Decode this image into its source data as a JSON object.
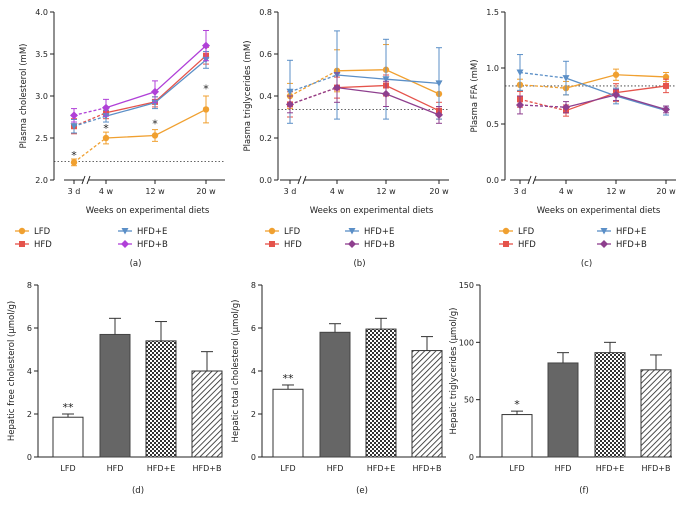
{
  "colors": {
    "LFD": "#f0a030",
    "HFD": "#e5534b",
    "HFD+E": "#5b8fc7",
    "HFD+B": "#b040d8",
    "B_dark": "#8e3f8e",
    "bar_dark": "#666666"
  },
  "chart_data": [
    {
      "panel": "(a)",
      "type": "line",
      "xlabel": "Weeks on experimental diets",
      "ylabel": "Plasma cholesterol (mM)",
      "categories": [
        "3 d",
        "4 w",
        "12 w",
        "20 w"
      ],
      "ylim": [
        2.0,
        4.0
      ],
      "yticks": [
        "2.0",
        "2.5",
        "3.0",
        "3.5",
        "4.0"
      ],
      "baseline": 2.22,
      "series": [
        {
          "name": "LFD",
          "values": [
            2.21,
            2.5,
            2.53,
            2.84
          ],
          "err": [
            0.04,
            0.07,
            0.07,
            0.16
          ]
        },
        {
          "name": "HFD",
          "values": [
            2.64,
            2.8,
            2.93,
            3.48
          ],
          "err": [
            0.09,
            0.07,
            0.06,
            0.1
          ]
        },
        {
          "name": "HFD+E",
          "values": [
            2.64,
            2.76,
            2.92,
            3.43
          ],
          "err": [
            0.08,
            0.07,
            0.07,
            0.1
          ]
        },
        {
          "name": "HFD+B",
          "values": [
            2.77,
            2.86,
            3.05,
            3.6
          ],
          "err": [
            0.08,
            0.1,
            0.13,
            0.18
          ]
        }
      ],
      "annotations": [
        {
          "text": "*",
          "cat": 0,
          "y": 2.3
        },
        {
          "text": "*",
          "cat": 1,
          "y": 2.62
        },
        {
          "text": "*",
          "cat": 2,
          "y": 2.67
        },
        {
          "text": "*",
          "cat": 3,
          "y": 3.09
        }
      ]
    },
    {
      "panel": "(b)",
      "type": "line",
      "xlabel": "Weeks on experimental diets",
      "ylabel": "Plasma triglycerides (mM)",
      "categories": [
        "3 d",
        "4 w",
        "12 w",
        "20 w"
      ],
      "ylim": [
        0.0,
        0.8
      ],
      "yticks": [
        "0.0",
        "0.2",
        "0.4",
        "0.6",
        "0.8"
      ],
      "baseline": 0.335,
      "series": [
        {
          "name": "LFD",
          "values": [
            0.4,
            0.52,
            0.525,
            0.41
          ],
          "err": [
            0.06,
            0.1,
            0.12,
            0.06
          ]
        },
        {
          "name": "HFD",
          "values": [
            0.36,
            0.44,
            0.45,
            0.33
          ],
          "err": [
            0.06,
            0.05,
            0.05,
            0.04
          ]
        },
        {
          "name": "HFD+E",
          "values": [
            0.42,
            0.5,
            0.48,
            0.46
          ],
          "err": [
            0.15,
            0.21,
            0.19,
            0.17
          ]
        },
        {
          "name": "HFD+B",
          "values": [
            0.36,
            0.44,
            0.41,
            0.31
          ],
          "err": [
            0.04,
            0.07,
            0.06,
            0.04
          ]
        }
      ]
    },
    {
      "panel": "(c)",
      "type": "line",
      "xlabel": "Weeks on experimental diets",
      "ylabel": "Plasma FFA (mM)",
      "categories": [
        "3 d",
        "4 w",
        "12 w",
        "20 w"
      ],
      "ylim": [
        0.0,
        1.5
      ],
      "yticks": [
        "0.0",
        "0.5",
        "1.0",
        "1.5"
      ],
      "baseline": 0.84,
      "series": [
        {
          "name": "LFD",
          "values": [
            0.85,
            0.82,
            0.94,
            0.92
          ],
          "err": [
            0.05,
            0.06,
            0.05,
            0.04
          ]
        },
        {
          "name": "HFD",
          "values": [
            0.72,
            0.62,
            0.78,
            0.84
          ],
          "err": [
            0.07,
            0.05,
            0.08,
            0.06
          ]
        },
        {
          "name": "HFD+E",
          "values": [
            0.96,
            0.91,
            0.75,
            0.62
          ],
          "err": [
            0.16,
            0.15,
            0.07,
            0.04
          ]
        },
        {
          "name": "HFD+B",
          "values": [
            0.67,
            0.65,
            0.76,
            0.63
          ],
          "err": [
            0.08,
            0.05,
            0.05,
            0.03
          ]
        }
      ]
    },
    {
      "panel": "(d)",
      "type": "bar",
      "ylabel": "Hepatic free cholesterol (μmol/g)",
      "categories": [
        "LFD",
        "HFD",
        "HFD+E",
        "HFD+B"
      ],
      "values": [
        1.85,
        5.7,
        5.4,
        4.0
      ],
      "err": [
        0.15,
        0.75,
        0.9,
        0.9
      ],
      "ylim": [
        0,
        8
      ],
      "yticks": [
        "0",
        "2",
        "4",
        "6",
        "8"
      ],
      "annotations": [
        {
          "text": "**",
          "cat": 0
        }
      ]
    },
    {
      "panel": "(e)",
      "type": "bar",
      "ylabel": "Hepatic total cholesterol (μmol/g)",
      "categories": [
        "LFD",
        "HFD",
        "HFD+E",
        "HFD+B"
      ],
      "values": [
        3.15,
        5.8,
        5.95,
        4.95
      ],
      "err": [
        0.2,
        0.4,
        0.5,
        0.65
      ],
      "ylim": [
        0,
        8
      ],
      "yticks": [
        "0",
        "2",
        "4",
        "6",
        "8"
      ],
      "annotations": [
        {
          "text": "**",
          "cat": 0
        }
      ]
    },
    {
      "panel": "(f)",
      "type": "bar",
      "ylabel": "Hepatic triglycerides (μmol/g)",
      "categories": [
        "LFD",
        "HFD",
        "HFD+E",
        "HFD+B"
      ],
      "values": [
        37,
        82,
        91,
        76
      ],
      "err": [
        3,
        9,
        9,
        13
      ],
      "ylim": [
        0,
        150
      ],
      "yticks": [
        "0",
        "50",
        "100",
        "150"
      ],
      "annotations": [
        {
          "text": "*",
          "cat": 0
        }
      ]
    }
  ]
}
